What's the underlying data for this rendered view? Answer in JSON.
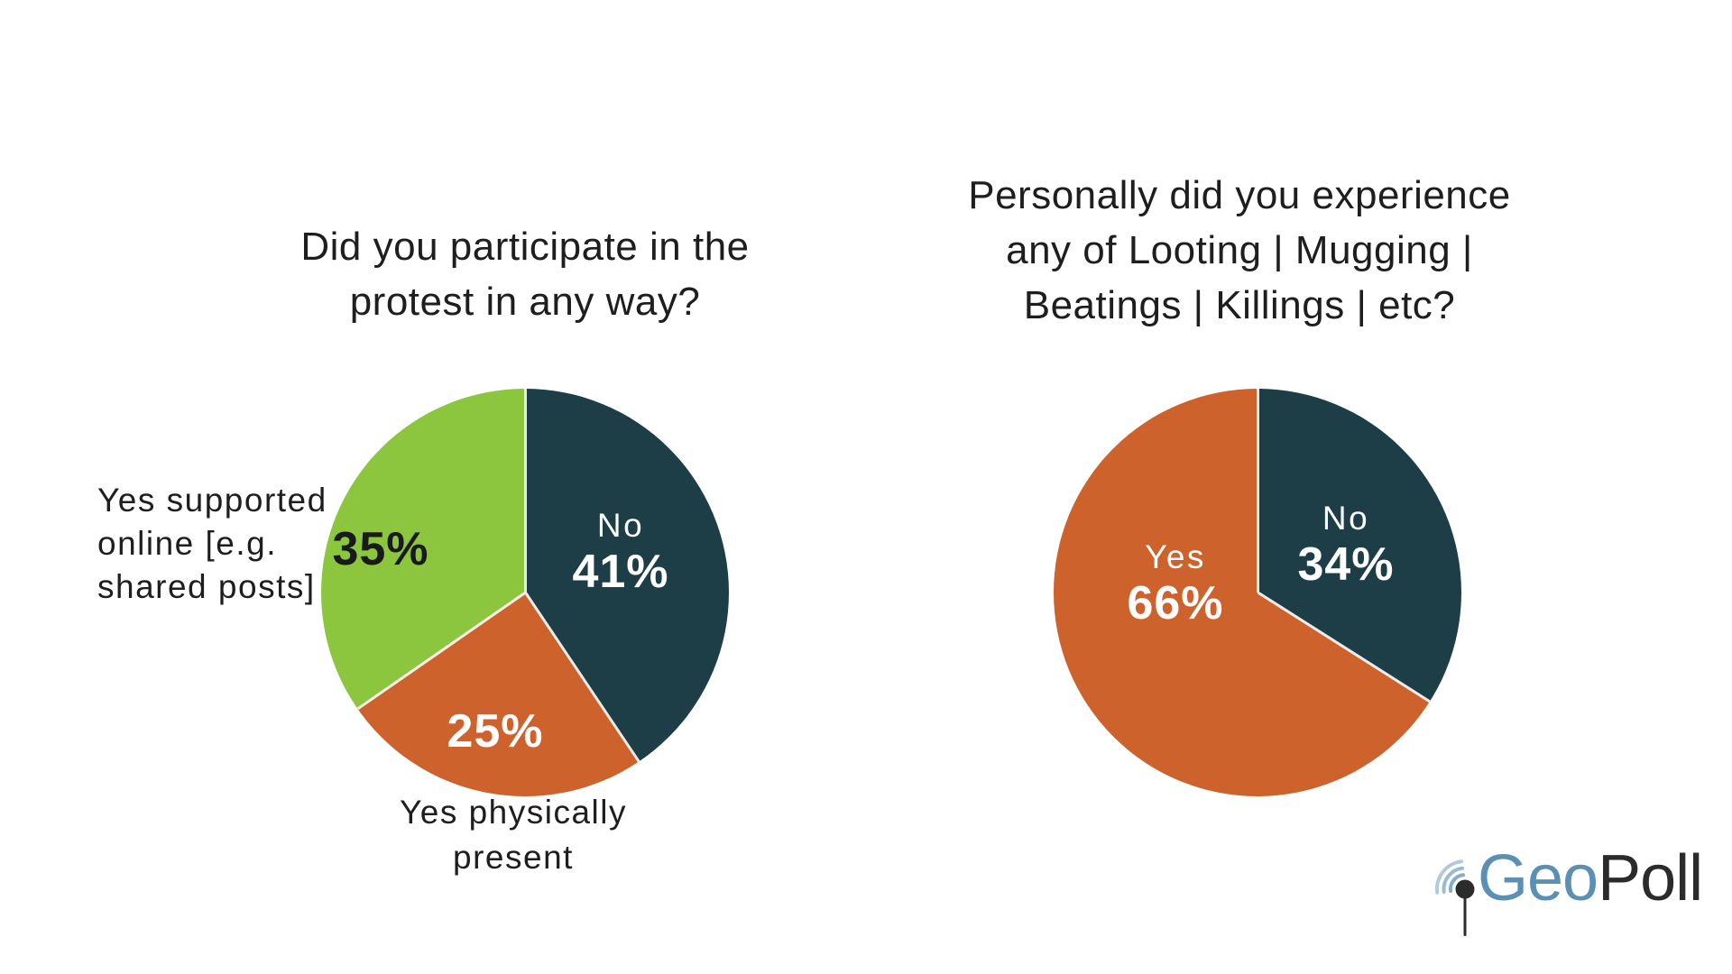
{
  "chart_data": [
    {
      "type": "pie",
      "title": "Did you participate in the protest in any way?",
      "title_lines": [
        "Did you participate in the",
        "protest in any way?"
      ],
      "labels": [
        "No",
        "Yes physically present",
        "Yes supported online [e.g. shared posts]"
      ],
      "values": [
        41,
        25,
        35
      ],
      "colors": [
        "#1D3E46",
        "#CE622C",
        "#8CC63E"
      ],
      "start_angle_deg": 0,
      "direction": "clockwise",
      "legend": "none",
      "inner_labels": [
        {
          "name": "No",
          "pct": "41%"
        },
        {
          "name": "",
          "pct": "25%"
        },
        {
          "name": "",
          "pct": "35%"
        }
      ],
      "outside_labels": {
        "supported_lines": [
          "Yes supported",
          "online [e.g.",
          "shared posts]"
        ],
        "physical_lines": [
          "Yes physically",
          "present"
        ]
      }
    },
    {
      "type": "pie",
      "title": "Personally did you experience any of Looting | Mugging | Beatings | Killings | etc?",
      "title_lines": [
        "Personally did you experience",
        "any of Looting | Mugging |",
        "Beatings | Killings | etc?"
      ],
      "labels": [
        "No",
        "Yes"
      ],
      "values": [
        34,
        66
      ],
      "colors": [
        "#1D3E46",
        "#CE622C"
      ],
      "start_angle_deg": 0,
      "direction": "clockwise",
      "legend": "none",
      "inner_labels": [
        {
          "name": "No",
          "pct": "34%"
        },
        {
          "name": "Yes",
          "pct": "66%"
        }
      ]
    }
  ],
  "palette": {
    "dark_teal": "#1D3E46",
    "orange": "#CE622C",
    "green": "#8CC63E",
    "background": "#FFFFFF",
    "text": "#1E1E1E"
  },
  "logo": {
    "geo": "Geo",
    "poll": "Poll",
    "icon": "pin-signal-icon",
    "geo_color": "#5B8FB4",
    "poll_color": "#2B2B2B",
    "arcs_color": "#7FA8C4"
  }
}
